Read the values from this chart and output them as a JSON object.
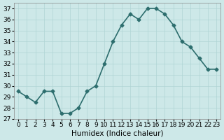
{
  "x": [
    0,
    1,
    2,
    3,
    4,
    5,
    6,
    7,
    8,
    9,
    10,
    11,
    12,
    13,
    14,
    15,
    16,
    17,
    18,
    19,
    20,
    21,
    22,
    23
  ],
  "y": [
    29.5,
    29.0,
    28.5,
    29.5,
    29.5,
    27.5,
    27.5,
    28.0,
    29.5,
    30.0,
    32.0,
    34.0,
    35.5,
    36.5,
    36.0,
    37.0,
    37.0,
    36.5,
    35.5,
    34.0,
    33.5,
    32.5,
    31.5,
    31.5
  ],
  "xlabel": "Humidex (Indice chaleur)",
  "xlim": [
    -0.5,
    23.5
  ],
  "ylim": [
    27,
    37.5
  ],
  "yticks": [
    27,
    28,
    29,
    30,
    31,
    32,
    33,
    34,
    35,
    36,
    37
  ],
  "xticks": [
    0,
    1,
    2,
    3,
    4,
    5,
    6,
    7,
    8,
    9,
    10,
    11,
    12,
    13,
    14,
    15,
    16,
    17,
    18,
    19,
    20,
    21,
    22,
    23
  ],
  "line_color": "#2d6e6e",
  "marker": "D",
  "marker_size": 2.5,
  "bg_color": "#cde8e8",
  "grid_color": "#afd4d4",
  "tick_fontsize": 6.5,
  "xlabel_fontsize": 7.5,
  "line_width": 1.2
}
